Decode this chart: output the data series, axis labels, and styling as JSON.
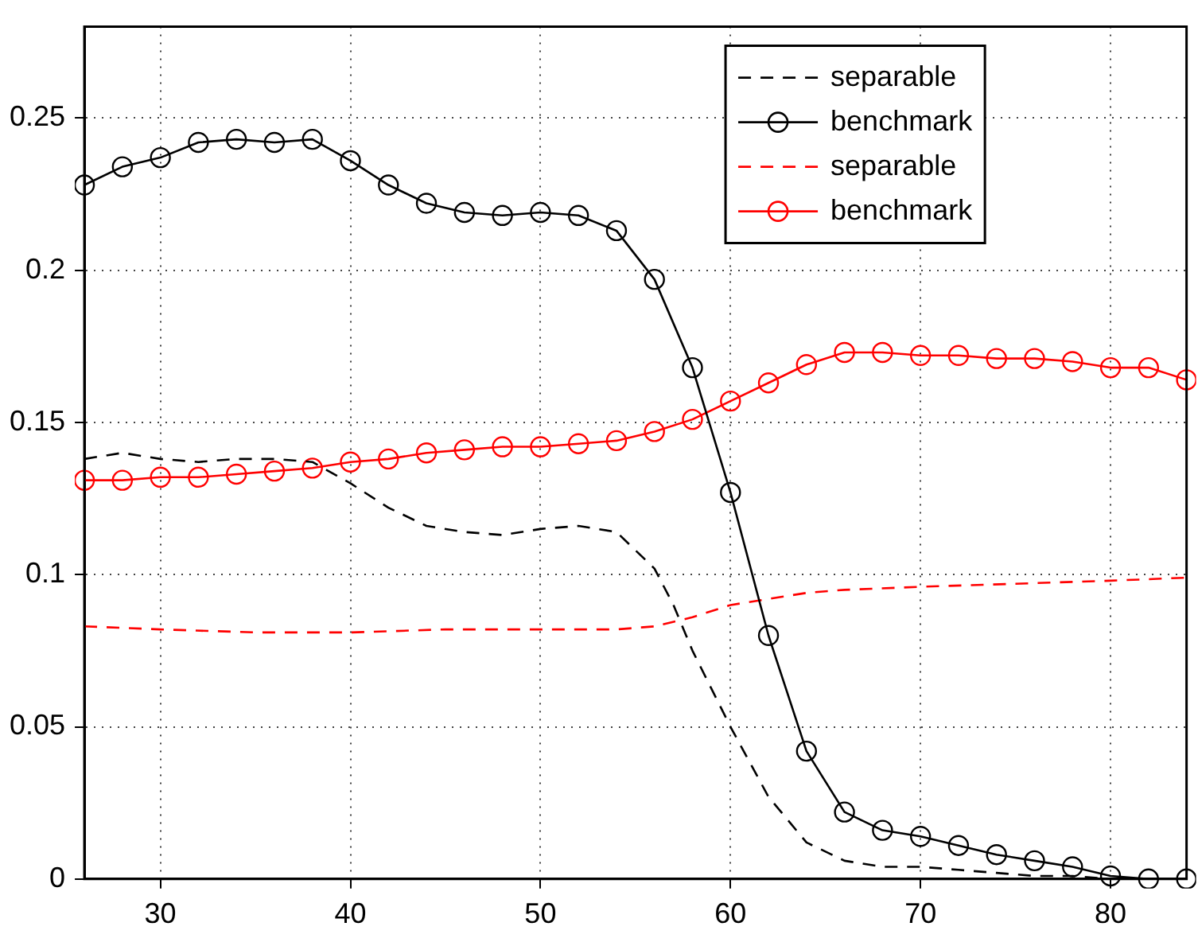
{
  "chart_data": {
    "type": "line",
    "xlim": [
      26,
      84
    ],
    "ylim": [
      0,
      0.28
    ],
    "xticks": [
      30,
      40,
      50,
      60,
      70,
      80
    ],
    "yticks": [
      0,
      0.05,
      0.1,
      0.15,
      0.2,
      0.25
    ],
    "grid": true,
    "legend": "top right",
    "series": [
      {
        "name": "separable",
        "color": "#000000",
        "line_style": "dashed",
        "marker": "none",
        "x": [
          26,
          28,
          30,
          32,
          34,
          36,
          38,
          40,
          42,
          44,
          46,
          48,
          50,
          52,
          54,
          56,
          57,
          58,
          60,
          62,
          64,
          66,
          68,
          70,
          72,
          74,
          76,
          78,
          80,
          84
        ],
        "values": [
          0.138,
          0.14,
          0.138,
          0.137,
          0.138,
          0.138,
          0.137,
          0.13,
          0.122,
          0.116,
          0.114,
          0.113,
          0.115,
          0.116,
          0.114,
          0.102,
          0.09,
          0.075,
          0.05,
          0.027,
          0.012,
          0.006,
          0.004,
          0.004,
          0.003,
          0.002,
          0.001,
          0.001,
          0,
          0
        ]
      },
      {
        "name": "benchmark",
        "color": "#000000",
        "line_style": "solid",
        "marker": "circle",
        "x": [
          26,
          28,
          30,
          32,
          34,
          36,
          38,
          40,
          42,
          44,
          46,
          48,
          50,
          52,
          54,
          56,
          58,
          60,
          62,
          64,
          66,
          68,
          70,
          72,
          74,
          76,
          78,
          80,
          82,
          84
        ],
        "values": [
          0.228,
          0.234,
          0.237,
          0.242,
          0.243,
          0.242,
          0.243,
          0.236,
          0.228,
          0.222,
          0.219,
          0.218,
          0.219,
          0.218,
          0.213,
          0.197,
          0.168,
          0.127,
          0.08,
          0.042,
          0.022,
          0.016,
          0.014,
          0.011,
          0.008,
          0.006,
          0.004,
          0.001,
          0,
          0
        ]
      },
      {
        "name": "separable",
        "color": "#ff0000",
        "line_style": "dashed",
        "marker": "none",
        "x": [
          26,
          30,
          35,
          40,
          45,
          50,
          54,
          56,
          58,
          60,
          62,
          64,
          66,
          70,
          75,
          80,
          84
        ],
        "values": [
          0.083,
          0.082,
          0.081,
          0.081,
          0.082,
          0.082,
          0.082,
          0.083,
          0.086,
          0.09,
          0.092,
          0.094,
          0.095,
          0.096,
          0.097,
          0.098,
          0.099
        ]
      },
      {
        "name": "benchmark",
        "color": "#ff0000",
        "line_style": "solid",
        "marker": "circle",
        "x": [
          26,
          28,
          30,
          32,
          34,
          36,
          38,
          40,
          42,
          44,
          46,
          48,
          50,
          52,
          54,
          56,
          58,
          60,
          62,
          64,
          66,
          68,
          70,
          72,
          74,
          76,
          78,
          80,
          82,
          84
        ],
        "values": [
          0.131,
          0.131,
          0.132,
          0.132,
          0.133,
          0.134,
          0.135,
          0.137,
          0.138,
          0.14,
          0.141,
          0.142,
          0.142,
          0.143,
          0.144,
          0.147,
          0.151,
          0.157,
          0.163,
          0.169,
          0.173,
          0.173,
          0.172,
          0.172,
          0.171,
          0.171,
          0.17,
          0.168,
          0.168,
          0.164
        ]
      }
    ]
  }
}
